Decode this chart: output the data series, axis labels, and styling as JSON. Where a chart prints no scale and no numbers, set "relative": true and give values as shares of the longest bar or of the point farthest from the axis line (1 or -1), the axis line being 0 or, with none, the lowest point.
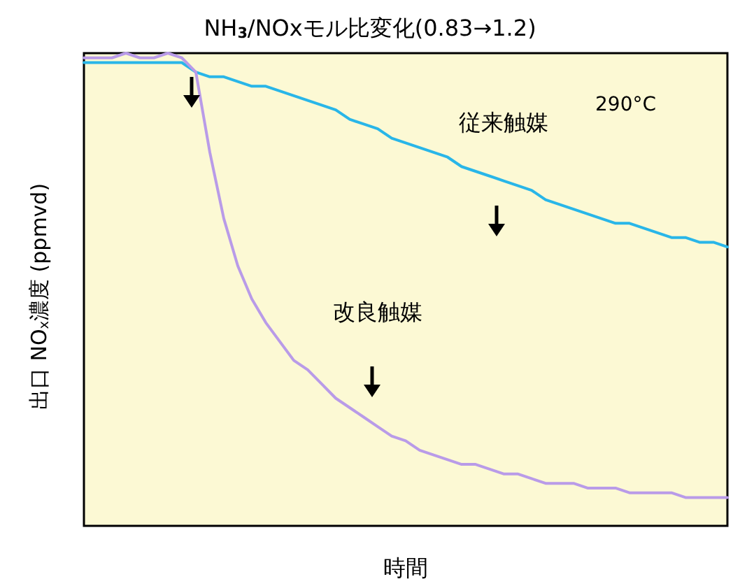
{
  "chart_data": {
    "type": "line",
    "relative": true,
    "title": "NH$_{3}$/NOxモル比変化(0.83→1.2)",
    "xlabel": "時間",
    "ylabel": "出口 NO$_{x}$濃度 (ppmvd)",
    "annotations": [
      "290°C"
    ],
    "grid": false,
    "legend": false,
    "marker": "none",
    "line_style": "solid",
    "categories": [
      null,
      null,
      null,
      null,
      null,
      null,
      null,
      null,
      null,
      null,
      null,
      null,
      null,
      null,
      null,
      null,
      null,
      null,
      null,
      null,
      null,
      null,
      null,
      null,
      null,
      null,
      null,
      null,
      null,
      null,
      null,
      null,
      null,
      null,
      null,
      null,
      null,
      null,
      null,
      null,
      null,
      null,
      null,
      null,
      null,
      null,
      null
    ],
    "series": [
      {
        "name": "従来触媒",
        "color": "#29b6e8",
        "values": [
          0.98,
          0.98,
          0.98,
          0.98,
          0.98,
          0.98,
          0.98,
          0.98,
          0.96,
          0.95,
          0.95,
          0.94,
          0.93,
          0.93,
          0.92,
          0.91,
          0.9,
          0.89,
          0.88,
          0.86,
          0.85,
          0.84,
          0.82,
          0.81,
          0.8,
          0.79,
          0.78,
          0.76,
          0.75,
          0.74,
          0.73,
          0.72,
          0.71,
          0.69,
          0.68,
          0.67,
          0.66,
          0.65,
          0.64,
          0.64,
          0.63,
          0.62,
          0.61,
          0.61,
          0.6,
          0.6,
          0.59
        ]
      },
      {
        "name": "改良触媒",
        "color": "#b99be8",
        "values": [
          0.99,
          0.99,
          0.99,
          1.0,
          0.99,
          0.99,
          1.0,
          0.99,
          0.96,
          0.79,
          0.65,
          0.55,
          0.48,
          0.43,
          0.39,
          0.35,
          0.33,
          0.3,
          0.27,
          0.25,
          0.23,
          0.21,
          0.19,
          0.18,
          0.16,
          0.15,
          0.14,
          0.13,
          0.13,
          0.12,
          0.11,
          0.11,
          0.1,
          0.09,
          0.09,
          0.09,
          0.08,
          0.08,
          0.08,
          0.07,
          0.07,
          0.07,
          0.07,
          0.06,
          0.06,
          0.06,
          0.06
        ]
      }
    ]
  }
}
